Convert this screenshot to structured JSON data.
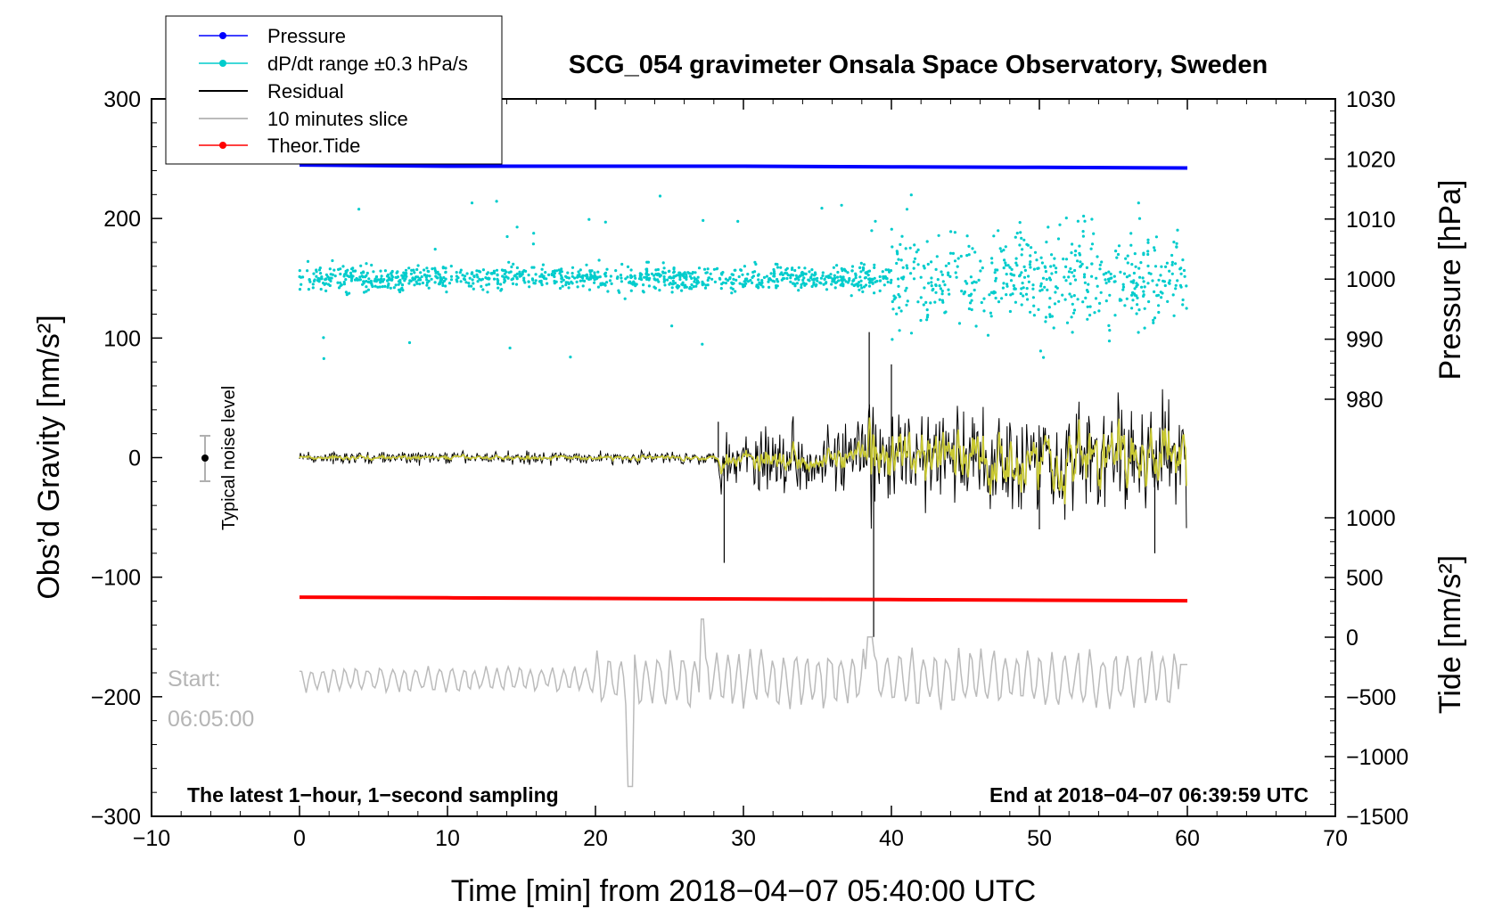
{
  "chart_data": {
    "type": "line",
    "title": "SCG_054 gravimeter Onsala Space Observatory, Sweden",
    "xlabel": "Time [min] from 2018−04−07 05:40:00 UTC",
    "ylabel": "Obs’d Gravity [nm/s²]",
    "ylabel_pressure": "Pressure [hPa]",
    "ylabel_tide": "Tide [nm/s²]",
    "xlim": [
      -10,
      70
    ],
    "ylim": [
      -300,
      300
    ],
    "pressure_range": [
      980,
      1030
    ],
    "tide_range": [
      -1500,
      1000
    ],
    "x_ticks": [
      "−10",
      "0",
      "10",
      "20",
      "30",
      "40",
      "50",
      "60",
      "70"
    ],
    "x_tick_values": [
      -10,
      0,
      10,
      20,
      30,
      40,
      50,
      60,
      70
    ],
    "y_ticks": [
      "300",
      "200",
      "100",
      "0",
      "−100",
      "−200",
      "−300"
    ],
    "y_tick_values": [
      300,
      200,
      100,
      0,
      -100,
      -200,
      -300
    ],
    "pressure_ticks": [
      "1030",
      "1020",
      "1010",
      "1000",
      "990",
      "980"
    ],
    "pressure_tick_values": [
      1030,
      1020,
      1010,
      1000,
      990,
      980
    ],
    "tide_ticks": [
      "1000",
      "500",
      "0",
      "−500",
      "−1000",
      "−1500"
    ],
    "tide_tick_values": [
      1000,
      500,
      0,
      -500,
      -1000,
      -1500
    ],
    "legend_position": "top-left",
    "legend": [
      {
        "name": "Pressure",
        "color": "#0000ff",
        "marker": true
      },
      {
        "name": "dP/dt range ±0.3 hPa/s",
        "color": "#00cccc",
        "marker": true
      },
      {
        "name": "Residual",
        "color": "#000000",
        "marker": false
      },
      {
        "name": "10 minutes slice",
        "color": "#bbbbbb",
        "marker": false
      },
      {
        "name": "Theor.Tide",
        "color": "#ff0000",
        "marker": true
      }
    ],
    "series": [
      {
        "name": "Pressure",
        "axis": "pressure",
        "x": [
          0,
          10,
          20,
          30,
          40,
          50,
          60
        ],
        "values": [
          1019.0,
          1018.8,
          1018.8,
          1018.8,
          1018.7,
          1018.6,
          1018.5
        ],
        "color": "#0000ff"
      },
      {
        "name": "dP/dt range ±0.3 hPa/s",
        "axis": "gravity",
        "note": "scatter cloud centred near 150 nm/s²; spread about ±10 for 0–40 min, about ±40 after 40 min",
        "center": 150,
        "color": "#00cccc"
      },
      {
        "name": "Residual",
        "axis": "gravity",
        "x": [
          0,
          10,
          20,
          28.3,
          28.7,
          38.5,
          38.8,
          40,
          50,
          57.8,
          60
        ],
        "values": [
          0,
          0,
          0,
          30,
          -88,
          105,
          -150,
          78,
          -60,
          -80,
          0
        ],
        "note": "noise about ±5 before 28 min, about ±40 to ±70 after",
        "color": "#000000"
      },
      {
        "name": "Residual (smoothed)",
        "axis": "gravity",
        "note": "yellow-olive smoothed trace overlaid on residual, amplitude up to about ±40 after 39 min",
        "color": "#c8c832"
      },
      {
        "name": "10 minutes slice",
        "axis": "gravity",
        "x": [
          0,
          10,
          20,
          22.3,
          27,
          38.5,
          60
        ],
        "values": [
          -187,
          -185,
          -185,
          -275,
          -187,
          -150,
          -173
        ],
        "color": "#bbbbbb"
      },
      {
        "name": "Theor.Tide",
        "axis": "tide",
        "x": [
          0,
          10,
          20,
          30,
          40,
          50,
          60
        ],
        "values": [
          335,
          330,
          325,
          320,
          315,
          310,
          305
        ],
        "color": "#ff0000"
      }
    ],
    "annotations": {
      "noise": "Typical noise level",
      "start_label": "Start:",
      "start_time": "06:05:00",
      "latest_note": "The latest 1−hour, 1−second sampling",
      "end_note": "End at 2018−04−07 06:39:59 UTC"
    }
  }
}
